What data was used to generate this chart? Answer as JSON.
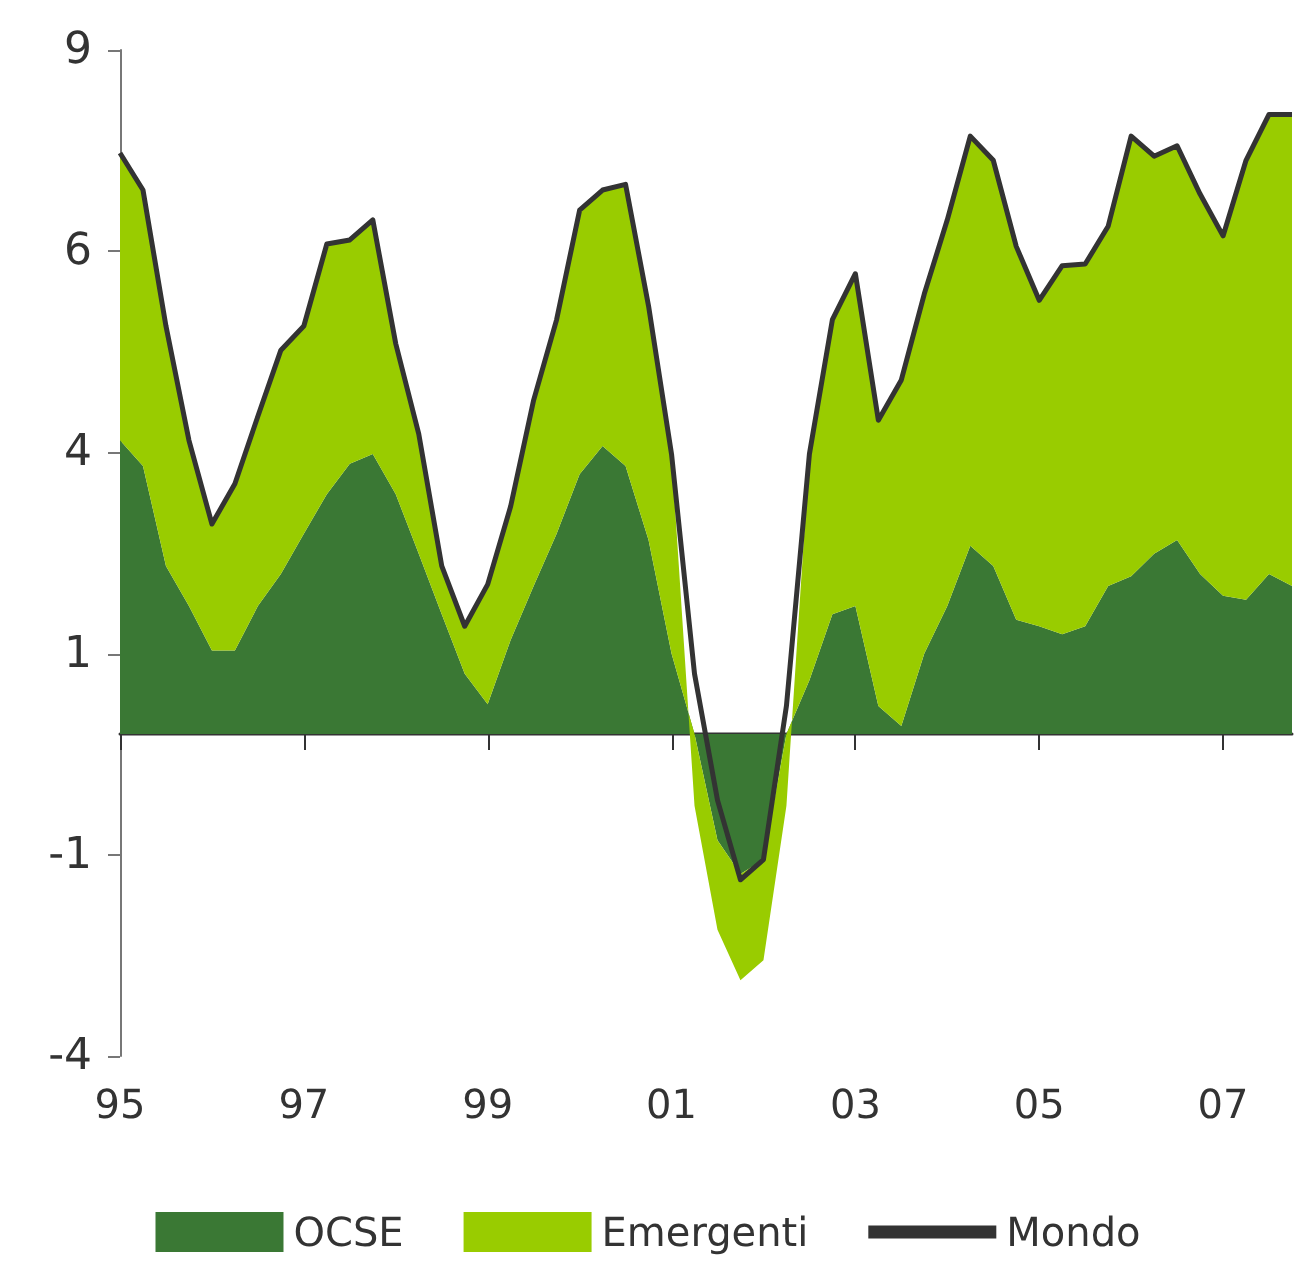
{
  "chart_data": {
    "type": "area",
    "stacked": true,
    "x": [
      1995,
      1995.25,
      1995.5,
      1995.75,
      1996,
      1996.25,
      1996.5,
      1996.75,
      1997,
      1997.25,
      1997.5,
      1997.75,
      1998,
      1998.25,
      1998.5,
      1998.75,
      1999,
      1999.25,
      1999.5,
      1999.75,
      2000,
      2000.25,
      2000.5,
      2000.75,
      2001,
      2001.25,
      2001.5,
      2001.75,
      2002,
      2002.25,
      2002.5,
      2002.75,
      2003,
      2003.25,
      2003.5,
      2003.75,
      2004,
      2004.25,
      2004.5,
      2004.75,
      2005,
      2005.25,
      2005.5,
      2005.75,
      2006,
      2006.25,
      2006.5,
      2006.75,
      2007,
      2007.25,
      2007.5,
      2007.75
    ],
    "series": [
      {
        "name": "OCSE",
        "color": "#3a7834",
        "values": [
          3.65,
          3.33,
          2.09,
          1.59,
          1.04,
          1.04,
          1.59,
          1.99,
          2.49,
          2.98,
          3.36,
          3.48,
          2.98,
          2.24,
          1.49,
          0.75,
          0.37,
          1.17,
          1.84,
          2.49,
          3.23,
          3.58,
          3.33,
          2.41,
          1.0,
          0,
          -1.32,
          -1.74,
          -1.56,
          0,
          0.67,
          1.49,
          1.59,
          0.35,
          0.1,
          1.0,
          1.59,
          2.34,
          2.09,
          1.42,
          1.34,
          1.24,
          1.34,
          1.84,
          1.96,
          2.24,
          2.41,
          1.99,
          1.72,
          1.67,
          1.99,
          1.84
        ]
      },
      {
        "name": "Emergenti",
        "color": "#99cc00",
        "values": [
          3.57,
          3.43,
          2.98,
          2.06,
          1.57,
          2.07,
          2.36,
          2.78,
          2.58,
          3.11,
          2.78,
          2.91,
          1.87,
          1.49,
          0.6,
          0.59,
          1.49,
          1.66,
          2.31,
          2.66,
          3.28,
          3.18,
          3.5,
          2.91,
          2.48,
          -0.89,
          -1.11,
          -1.32,
          -1.25,
          -0.89,
          2.81,
          3.66,
          4.13,
          3.55,
          4.3,
          4.47,
          4.8,
          5.09,
          5.04,
          4.64,
          4.05,
          4.58,
          4.5,
          4.47,
          5.47,
          4.94,
          4.9,
          4.72,
          4.47,
          5.46,
          5.71,
          5.86
        ]
      },
      {
        "name": "Mondo",
        "type": "line",
        "color": "#333333",
        "values": [
          7.22,
          6.76,
          5.07,
          3.65,
          2.61,
          3.11,
          3.95,
          4.77,
          5.07,
          6.09,
          6.14,
          6.39,
          4.85,
          3.73,
          2.09,
          1.34,
          1.86,
          2.83,
          4.15,
          5.15,
          6.51,
          6.76,
          6.83,
          5.32,
          3.48,
          0.75,
          -0.82,
          -1.81,
          -1.56,
          0.35,
          3.48,
          5.15,
          5.72,
          3.9,
          4.4,
          5.47,
          6.39,
          7.43,
          7.13,
          6.06,
          5.39,
          5.82,
          5.84,
          6.31,
          7.43,
          7.18,
          7.31,
          6.71,
          6.19,
          7.13,
          7.7,
          7.7
        ]
      }
    ],
    "xlim": [
      1995,
      2007.75
    ],
    "xticks": [
      {
        "value": 1995,
        "label": "95"
      },
      {
        "value": 1997,
        "label": "97"
      },
      {
        "value": 1999,
        "label": "99"
      },
      {
        "value": 2001,
        "label": "01"
      },
      {
        "value": 2003,
        "label": "03"
      },
      {
        "value": 2005,
        "label": "05"
      },
      {
        "value": 2007,
        "label": "07"
      }
    ],
    "ylim": [
      -4,
      8.5
    ],
    "yticks": [
      {
        "value": -4,
        "label": "-4"
      },
      {
        "value": -1.5,
        "label": "-1"
      },
      {
        "value": 1,
        "label": "1"
      },
      {
        "value": 3.5,
        "label": "4"
      },
      {
        "value": 6,
        "label": "6"
      },
      {
        "value": 8.5,
        "label": "9"
      }
    ],
    "grid": false,
    "legend": "bottom",
    "marker": "none",
    "line_style": "solid"
  }
}
